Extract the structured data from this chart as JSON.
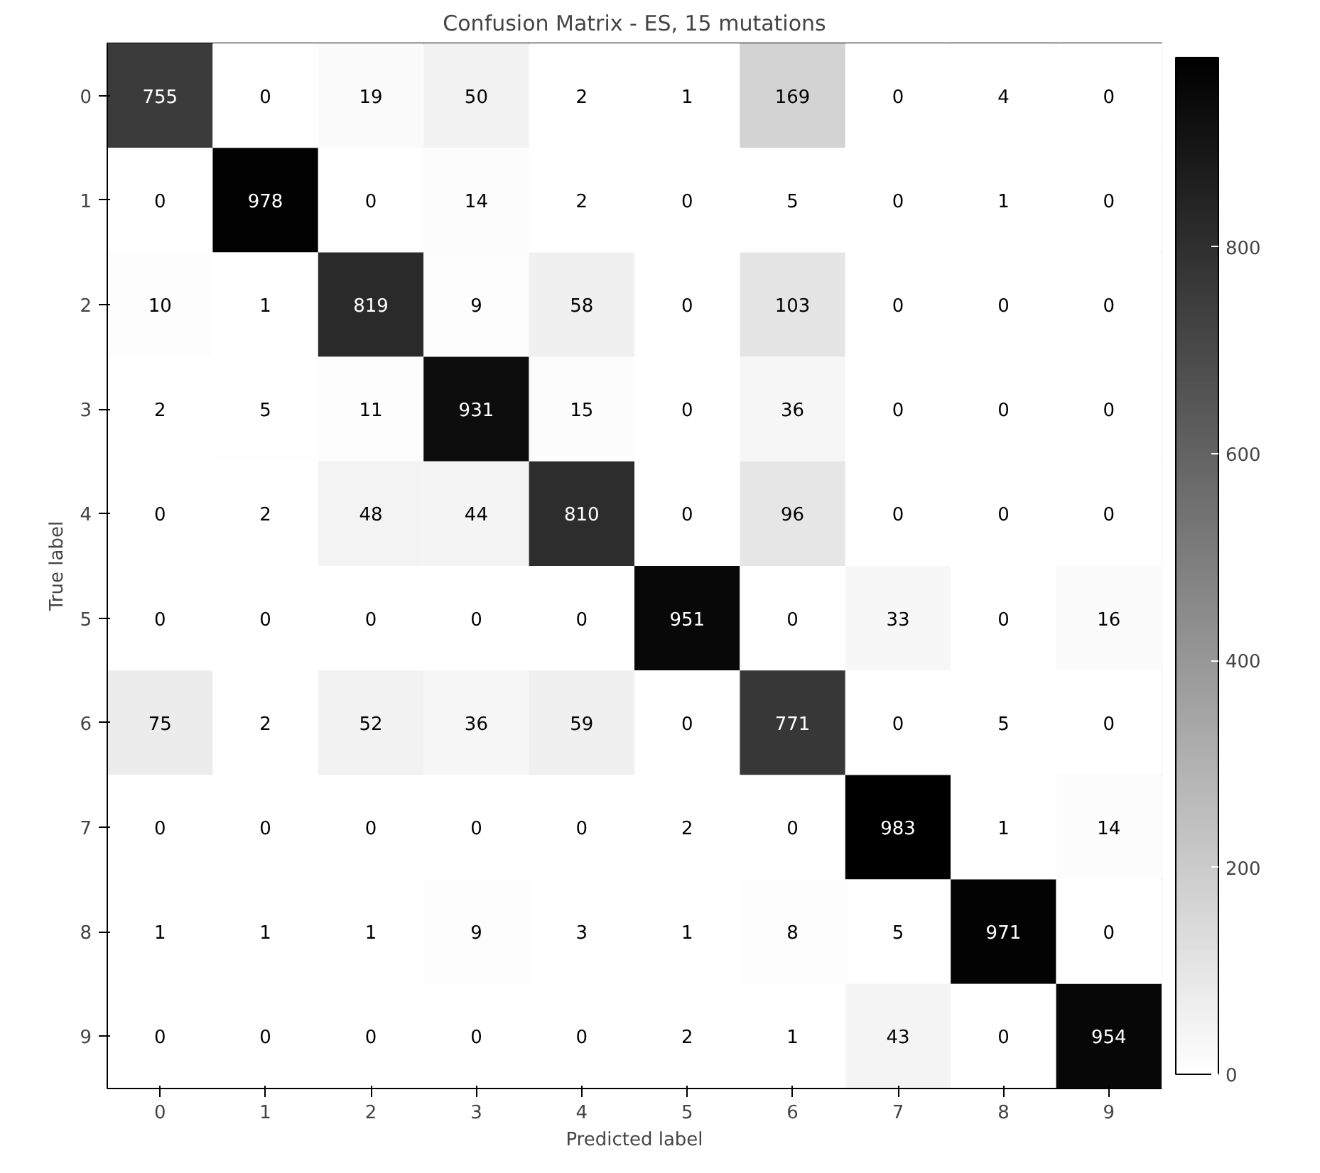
{
  "chart_data": {
    "type": "heatmap",
    "title": "Confusion Matrix - ES, 15 mutations",
    "xlabel": "Predicted label",
    "ylabel": "True label",
    "categories": [
      "0",
      "1",
      "2",
      "3",
      "4",
      "5",
      "6",
      "7",
      "8",
      "9"
    ],
    "y_categories": [
      "0",
      "1",
      "2",
      "3",
      "4",
      "5",
      "6",
      "7",
      "8",
      "9"
    ],
    "cells": [
      [
        755,
        0,
        19,
        50,
        2,
        1,
        169,
        0,
        4,
        0
      ],
      [
        0,
        978,
        0,
        14,
        2,
        0,
        5,
        0,
        1,
        0
      ],
      [
        10,
        1,
        819,
        9,
        58,
        0,
        103,
        0,
        0,
        0
      ],
      [
        2,
        5,
        11,
        931,
        15,
        0,
        36,
        0,
        0,
        0
      ],
      [
        0,
        2,
        48,
        44,
        810,
        0,
        96,
        0,
        0,
        0
      ],
      [
        0,
        0,
        0,
        0,
        0,
        951,
        0,
        33,
        0,
        16
      ],
      [
        75,
        2,
        52,
        36,
        59,
        0,
        771,
        0,
        5,
        0
      ],
      [
        0,
        0,
        0,
        0,
        0,
        2,
        0,
        983,
        1,
        14
      ],
      [
        1,
        1,
        1,
        9,
        3,
        1,
        8,
        5,
        971,
        0
      ],
      [
        0,
        0,
        0,
        0,
        0,
        2,
        1,
        43,
        0,
        954
      ]
    ],
    "clim": [
      0,
      983
    ],
    "cticks": [
      0,
      200,
      400,
      600,
      800
    ],
    "data_labels": true
  }
}
